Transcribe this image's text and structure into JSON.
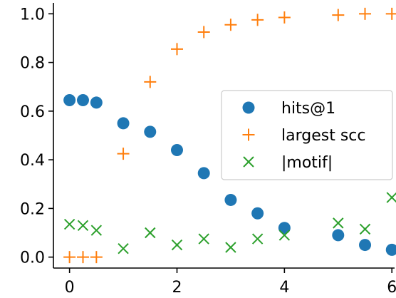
{
  "chart_data": {
    "type": "scatter",
    "xlim": [
      -0.3,
      6.05
    ],
    "ylim": [
      -0.045,
      1.045
    ],
    "x_ticks": [
      0,
      2,
      4,
      6
    ],
    "x_tick_labels": [
      "0",
      "2",
      "4",
      "6"
    ],
    "y_ticks": [
      0.0,
      0.2,
      0.4,
      0.6,
      0.8,
      1.0
    ],
    "y_tick_labels": [
      "0.0",
      "0.2",
      "0.4",
      "0.6",
      "0.8",
      "1.0"
    ],
    "grid": false,
    "legend_position": "center-right",
    "series": [
      {
        "name": "hits@1",
        "marker": "circle",
        "color": "#1f77b4",
        "points": [
          {
            "x": 0,
            "y": 0.645
          },
          {
            "x": 0.25,
            "y": 0.645
          },
          {
            "x": 0.5,
            "y": 0.635
          },
          {
            "x": 1.0,
            "y": 0.55
          },
          {
            "x": 1.5,
            "y": 0.515
          },
          {
            "x": 2.0,
            "y": 0.44
          },
          {
            "x": 2.5,
            "y": 0.345
          },
          {
            "x": 3.0,
            "y": 0.235
          },
          {
            "x": 3.5,
            "y": 0.18
          },
          {
            "x": 4.0,
            "y": 0.12
          },
          {
            "x": 5.0,
            "y": 0.09
          },
          {
            "x": 5.5,
            "y": 0.05
          },
          {
            "x": 6.0,
            "y": 0.03
          }
        ]
      },
      {
        "name": "largest scc",
        "marker": "plus",
        "color": "#ff7f0e",
        "points": [
          {
            "x": 0,
            "y": 0.0
          },
          {
            "x": 0.25,
            "y": 0.0
          },
          {
            "x": 0.5,
            "y": 0.0
          },
          {
            "x": 1.0,
            "y": 0.425
          },
          {
            "x": 1.5,
            "y": 0.72
          },
          {
            "x": 2.0,
            "y": 0.855
          },
          {
            "x": 2.5,
            "y": 0.925
          },
          {
            "x": 3.0,
            "y": 0.955
          },
          {
            "x": 3.5,
            "y": 0.975
          },
          {
            "x": 4.0,
            "y": 0.985
          },
          {
            "x": 5.0,
            "y": 0.995
          },
          {
            "x": 5.5,
            "y": 1.0
          },
          {
            "x": 6.0,
            "y": 1.0
          }
        ]
      },
      {
        "name": "|motif|",
        "marker": "x",
        "color": "#2ca02c",
        "points": [
          {
            "x": 0,
            "y": 0.135
          },
          {
            "x": 0.25,
            "y": 0.13
          },
          {
            "x": 0.5,
            "y": 0.11
          },
          {
            "x": 1.0,
            "y": 0.035
          },
          {
            "x": 1.5,
            "y": 0.1
          },
          {
            "x": 2.0,
            "y": 0.05
          },
          {
            "x": 2.5,
            "y": 0.075
          },
          {
            "x": 3.0,
            "y": 0.04
          },
          {
            "x": 3.5,
            "y": 0.075
          },
          {
            "x": 4.0,
            "y": 0.09
          },
          {
            "x": 5.0,
            "y": 0.14
          },
          {
            "x": 5.5,
            "y": 0.115
          },
          {
            "x": 6.0,
            "y": 0.245
          }
        ]
      }
    ]
  }
}
